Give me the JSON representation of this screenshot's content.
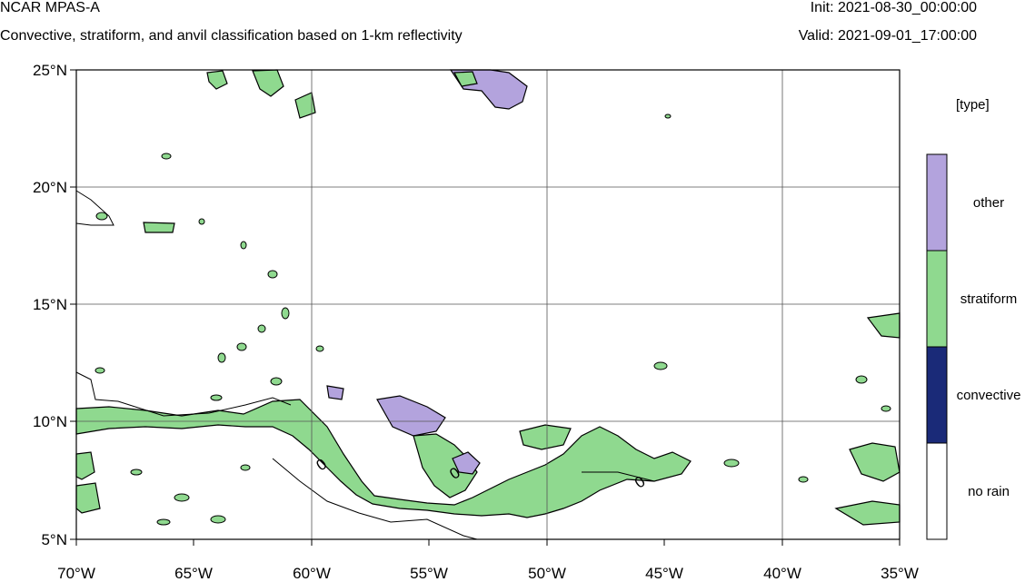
{
  "header": {
    "title": "NCAR MPAS-A",
    "subtitle": "Convective, stratiform, and anvil classification based on 1-km reflectivity",
    "init": "Init: 2021-08-30_00:00:00",
    "valid": "Valid: 2021-09-01_17:00:00"
  },
  "map": {
    "lon_labels": [
      "70°W",
      "65°W",
      "60°W",
      "55°W",
      "50°W",
      "45°W",
      "40°W",
      "35°W"
    ],
    "lat_labels": [
      "25°N",
      "20°N",
      "15°N",
      "10°N",
      "5°N"
    ],
    "lon_range": [
      -70,
      -35
    ],
    "lat_range": [
      5,
      25
    ],
    "contour_labels": [
      "0",
      "0",
      "0"
    ],
    "grid": true
  },
  "colorbar": {
    "title": "[type]",
    "categories": [
      {
        "label": "other",
        "color": "#b3a3dd"
      },
      {
        "label": "stratiform",
        "color": "#8fd98f"
      },
      {
        "label": "convective",
        "color": "#1a2a78"
      },
      {
        "label": "no rain",
        "color": "#ffffff"
      }
    ]
  }
}
